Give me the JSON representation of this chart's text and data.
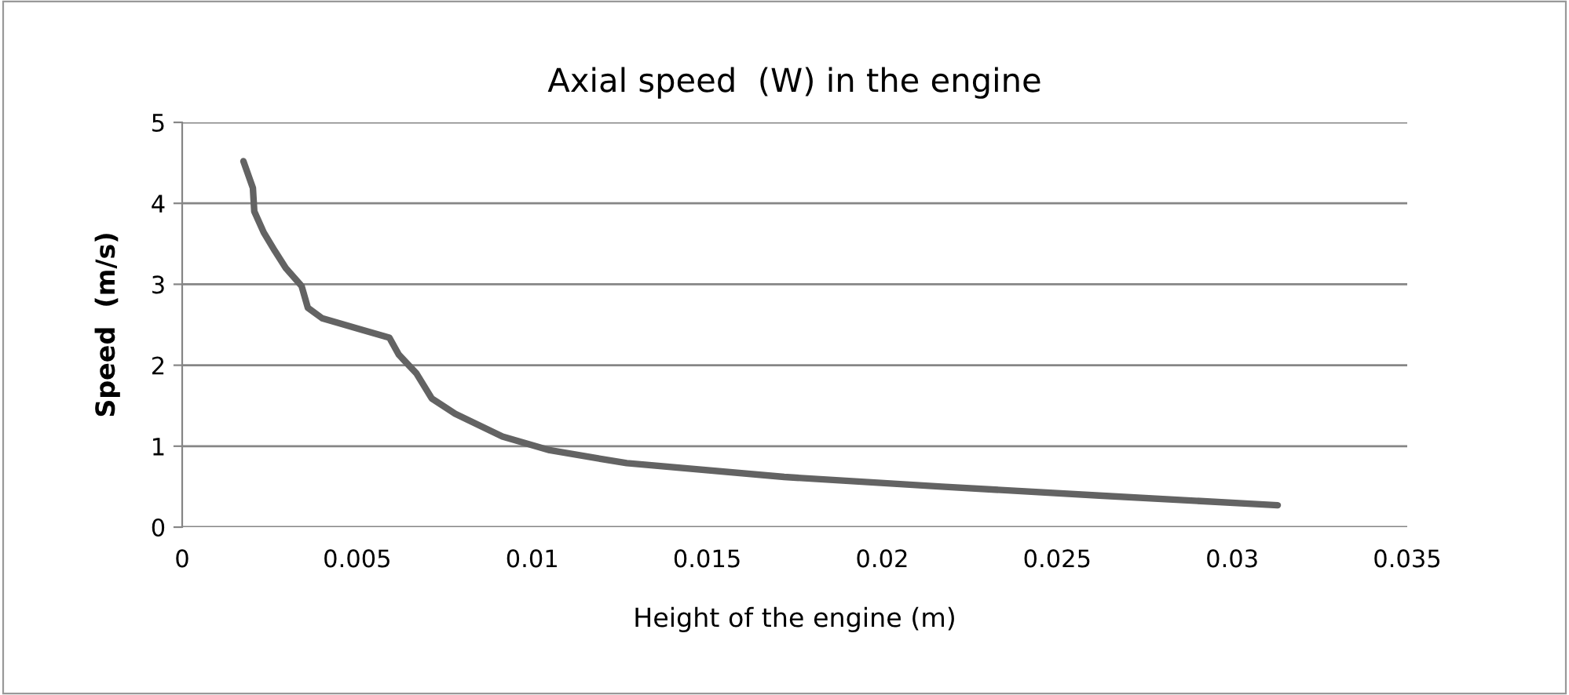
{
  "chart_data": {
    "type": "line",
    "title": "Axial speed  (W) in the engine",
    "xlabel": "Height of the engine (m)",
    "ylabel": "Speed  (m/s)",
    "series": [
      {
        "color": "#636363",
        "x": [
          0.00175,
          0.00202,
          0.00206,
          0.00233,
          0.00265,
          0.00296,
          0.00341,
          0.00359,
          0.004,
          0.00512,
          0.00592,
          0.00619,
          0.00669,
          0.00713,
          0.0078,
          0.00915,
          0.0105,
          0.0127,
          0.0172,
          0.0217,
          0.0262,
          0.0313
        ],
        "values": [
          4.52,
          4.19,
          3.9,
          3.64,
          3.41,
          3.2,
          2.98,
          2.71,
          2.58,
          2.44,
          2.34,
          2.13,
          1.9,
          1.59,
          1.4,
          1.12,
          0.95,
          0.79,
          0.62,
          0.5,
          0.39,
          0.27
        ]
      }
    ],
    "xlim": [
      0,
      0.035
    ],
    "xticks": [
      0,
      0.005,
      0.01,
      0.015,
      0.02,
      0.025,
      0.03,
      0.035
    ],
    "ylim": [
      0,
      5
    ],
    "yticks": [
      0,
      1,
      2,
      3,
      4,
      5
    ],
    "grid": "y",
    "marker": "none",
    "line_style": "solid"
  }
}
